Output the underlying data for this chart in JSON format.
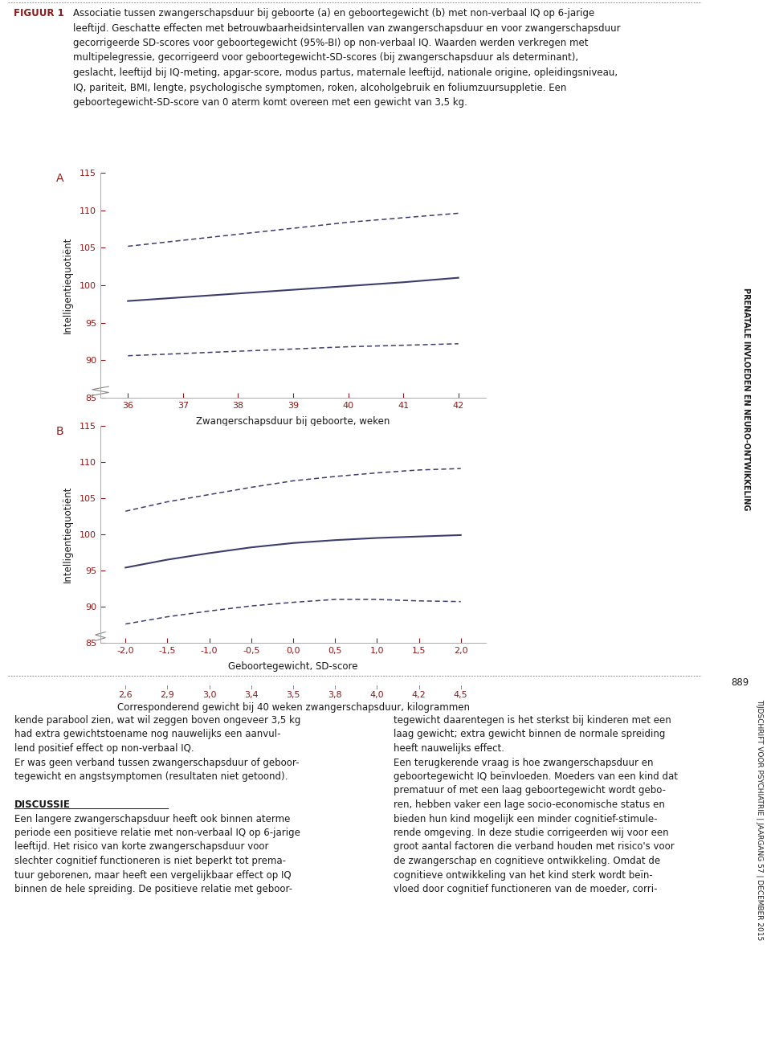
{
  "title_label": "FIGUUR 1",
  "label_color": "#8b1a1a",
  "line_color": "#3d3d6b",
  "background_color": "#ffffff",
  "caption_lines": [
    "Associatie tussen zwangerschapsduur bij geboorte (a) en geboortegewicht (b) met non-verbaal IQ op 6-jarige",
    "leeftijd. Geschatte effecten met betrouwbaarheidsintervallen van zwangerschapsduur en voor zwangerschapsduur",
    "gecorrigeerde SD-scores voor geboortegewicht (95%-BI) op non-verbaal IQ. Waarden werden verkregen met",
    "multipelegressie, gecorrigeerd voor geboortegewicht-SD-scores (bij zwangerschapsduur als determinant),",
    "geslacht, leeftijd bij IQ-meting, apgar-score, modus partus, maternale leeftijd, nationale origine, opleidingsniveau,",
    "IQ, pariteit, BMI, lengte, psychologische symptomen, roken, alcoholgebruik en foliumzuursuppletie. Een",
    "geboortegewicht-SD-score van 0 aterm komt overeen met een gewicht van 3,5 kg."
  ],
  "panel_A_label": "A",
  "panel_B_label": "B",
  "panel_A": {
    "x": [
      36,
      37,
      38,
      39,
      40,
      41,
      42
    ],
    "y_main": [
      97.9,
      98.4,
      98.9,
      99.4,
      99.9,
      100.4,
      101.0
    ],
    "y_upper": [
      105.2,
      106.0,
      106.8,
      107.6,
      108.4,
      109.0,
      109.6
    ],
    "y_lower": [
      90.6,
      90.9,
      91.2,
      91.5,
      91.8,
      92.0,
      92.2
    ],
    "xlabel": "Zwangerschapsduur bij geboorte, weken",
    "ylabel": "Intelligentiequotiënt",
    "xlim": [
      35.5,
      42.5
    ],
    "ylim": [
      85,
      115
    ],
    "yticks": [
      85,
      90,
      95,
      100,
      105,
      110,
      115
    ],
    "xticks": [
      36,
      37,
      38,
      39,
      40,
      41,
      42
    ]
  },
  "panel_B": {
    "x": [
      -2.0,
      -1.5,
      -1.0,
      -0.5,
      0.0,
      0.5,
      1.0,
      1.5,
      2.0
    ],
    "y_main": [
      95.4,
      96.5,
      97.4,
      98.2,
      98.8,
      99.2,
      99.5,
      99.7,
      99.9
    ],
    "y_upper": [
      103.2,
      104.5,
      105.5,
      106.5,
      107.4,
      108.0,
      108.5,
      108.9,
      109.1
    ],
    "y_lower": [
      87.6,
      88.6,
      89.4,
      90.1,
      90.6,
      91.0,
      91.0,
      90.8,
      90.7
    ],
    "xlabel": "Geboortegewicht, SD-score",
    "xlabel2": "Corresponderend gewicht bij 40 weken zwangerschapsduur, kilogrammen",
    "ylabel": "Intelligentiequotiënt",
    "xlim": [
      -2.3,
      2.3
    ],
    "ylim": [
      85,
      115
    ],
    "yticks": [
      85,
      90,
      95,
      100,
      105,
      110,
      115
    ],
    "xticks": [
      -2.0,
      -1.5,
      -1.0,
      -0.5,
      0.0,
      0.5,
      1.0,
      1.5,
      2.0
    ],
    "xticklabels": [
      "-2,0",
      "-1,5",
      "-1,0",
      "-0,5",
      "0,0",
      "0,5",
      "1,0",
      "1,5",
      "2,0"
    ],
    "xticks2_vals": [
      -2.0,
      -1.5,
      -1.0,
      -0.5,
      0.0,
      0.5,
      1.0,
      1.5,
      2.0
    ],
    "xticklabels2": [
      "2,6",
      "2,9",
      "3,0",
      "3,4",
      "3,5",
      "3,8",
      "4,0",
      "4,2",
      "4,5"
    ]
  },
  "bottom_col1_lines": [
    "kende parabool zien, wat wil zeggen boven ongeveer 3,5 kg",
    "had extra gewichtstoename nog nauwelijks een aanvul-",
    "lend positief effect op non-verbaal IQ.",
    "Er was geen verband tussen zwangerschapsduur of geboor-",
    "tegewicht en angstsymptomen (resultaten niet getoond).",
    "",
    "DISCUSSIE",
    "Een langere zwangerschapsduur heeft ook binnen aterme",
    "periode een positieve relatie met non-verbaal IQ op 6-jarige",
    "leeftijd. Het risico van korte zwangerschapsduur voor",
    "slechter cognitief functioneren is niet beperkt tot prema-",
    "tuur geborenen, maar heeft een vergelijkbaar effect op IQ",
    "binnen de hele spreiding. De positieve relatie met geboor-"
  ],
  "bottom_col2_lines": [
    "tegewicht daarentegen is het sterkst bij kinderen met een",
    "laag gewicht; extra gewicht binnen de normale spreiding",
    "heeft nauwelijks effect.",
    "Een terugkerende vraag is hoe zwangerschapsduur en",
    "geboortegewicht IQ beïnvloeden. Moeders van een kind dat",
    "prematuur of met een laag geboortegewicht wordt gebo-",
    "ren, hebben vaker een lage socio-economische status en",
    "bieden hun kind mogelijk een minder cognitief-stimule-",
    "rende omgeving. In deze studie corrigeerden wij voor een",
    "groot aantal factoren die verband houden met risico's voor",
    "de zwangerschap en cognitieve ontwikkeling. Omdat de",
    "cognitieve ontwikkeling van het kind sterk wordt beïn-",
    "vloed door cognitief functioneren van de moeder, corri-"
  ],
  "discussie_label": "DISCUSSIE",
  "right_sidebar": "PRENATALE INVLOEDEN EN NEURO-ONTWIKKELING",
  "page_number": "889",
  "journal_info": "TIJDSCHRIFT VOOR PSYCHIATRIE | JAARGANG 57 | DECEMBER 2015",
  "dot_border_color": "#c07070"
}
